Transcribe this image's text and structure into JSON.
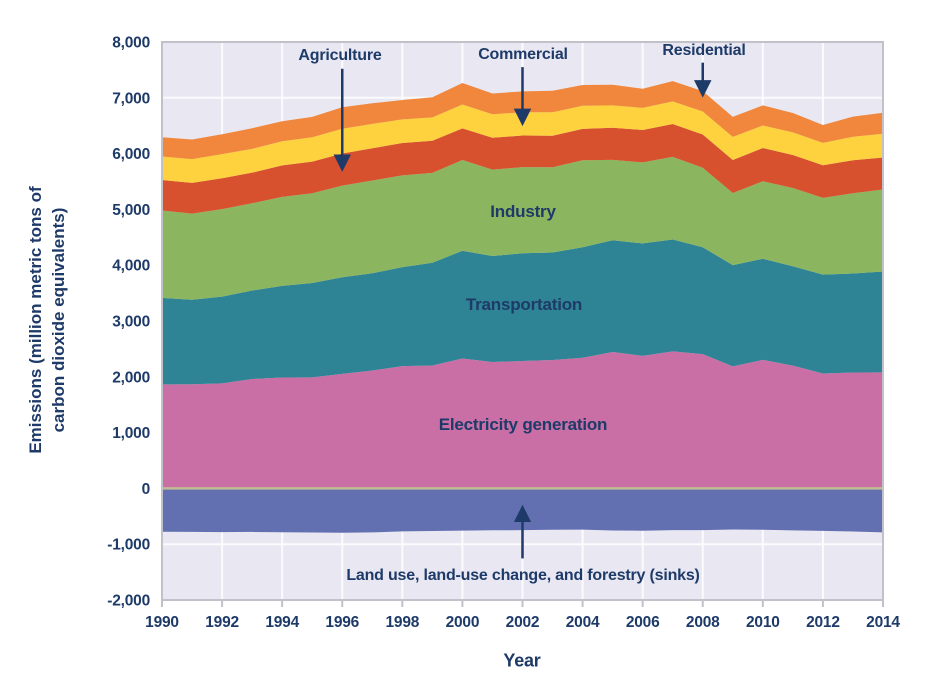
{
  "figure": {
    "x_axis_title": "Year",
    "y_axis_title_line1": "Emissions (million metric tons of",
    "y_axis_title_line2": "carbon dioxide equivalents)",
    "colors": {
      "plot_background": "#E9E8F2",
      "gridline": "#FBFBFD",
      "border": "#C2C1CA",
      "zero_line": "#C2BC92",
      "text_navy": "#1E3A68",
      "electricity_generation": "#C96FA6",
      "transportation": "#2E8494",
      "industry": "#8CB55F",
      "agriculture": "#D8512F",
      "commercial": "#FDD23E",
      "residential": "#F0873C",
      "sinks": "#6270B2"
    }
  },
  "chart_data": {
    "type": "area",
    "stacked": true,
    "title": "",
    "xlabel": "Year",
    "ylabel": "Emissions (million metric tons of carbon dioxide equivalents)",
    "xlim": [
      1990,
      2014
    ],
    "ylim": [
      -2000,
      8000
    ],
    "grid": true,
    "x": [
      1990,
      1991,
      1992,
      1993,
      1994,
      1995,
      1996,
      1997,
      1998,
      1999,
      2000,
      2001,
      2002,
      2003,
      2004,
      2005,
      2006,
      2007,
      2008,
      2009,
      2010,
      2011,
      2012,
      2013,
      2014
    ],
    "x_ticks": [
      1990,
      1992,
      1994,
      1996,
      1998,
      2000,
      2002,
      2004,
      2006,
      2008,
      2010,
      2012,
      2014
    ],
    "y_ticks": [
      {
        "value": 8000,
        "label": "8,000"
      },
      {
        "value": 7000,
        "label": "7,000"
      },
      {
        "value": 6000,
        "label": "6,000"
      },
      {
        "value": 5000,
        "label": "5,000"
      },
      {
        "value": 4000,
        "label": "4,000"
      },
      {
        "value": 3000,
        "label": "3,000"
      },
      {
        "value": 2000,
        "label": "2,000"
      },
      {
        "value": 1000,
        "label": "1,000"
      },
      {
        "value": 0,
        "label": "0"
      },
      {
        "value": -1000,
        "label": "-1,000"
      },
      {
        "value": -2000,
        "label": "-2,000"
      }
    ],
    "series": [
      {
        "name": "Electricity generation",
        "color": "#C96FA6",
        "role": "positive",
        "values": [
          1864,
          1866,
          1883,
          1960,
          1988,
          1989,
          2052,
          2114,
          2191,
          2202,
          2329,
          2266,
          2283,
          2300,
          2342,
          2444,
          2376,
          2456,
          2407,
          2186,
          2304,
          2201,
          2060,
          2077,
          2080
        ]
      },
      {
        "name": "Transportation",
        "color": "#2E8494",
        "role": "positive",
        "values": [
          1551,
          1515,
          1553,
          1587,
          1641,
          1692,
          1732,
          1742,
          1775,
          1843,
          1929,
          1898,
          1931,
          1927,
          1979,
          2003,
          2015,
          2004,
          1915,
          1816,
          1812,
          1780,
          1771,
          1775,
          1806
        ]
      },
      {
        "name": "Industry",
        "color": "#8CB55F",
        "role": "positive",
        "values": [
          1565,
          1543,
          1569,
          1563,
          1596,
          1608,
          1643,
          1663,
          1643,
          1609,
          1628,
          1549,
          1544,
          1528,
          1560,
          1441,
          1451,
          1481,
          1424,
          1291,
          1388,
          1403,
          1375,
          1438,
          1470
        ]
      },
      {
        "name": "Agriculture",
        "color": "#D8512F",
        "role": "positive",
        "values": [
          548,
          551,
          554,
          548,
          565,
          567,
          574,
          577,
          580,
          577,
          565,
          570,
          566,
          566,
          561,
          576,
          581,
          589,
          596,
          592,
          596,
          590,
          586,
          591,
          574
        ]
      },
      {
        "name": "Commercial",
        "color": "#FDD23E",
        "role": "positive",
        "values": [
          421,
          427,
          432,
          427,
          431,
          437,
          444,
          437,
          424,
          419,
          429,
          422,
          418,
          421,
          415,
          400,
          397,
          407,
          412,
          414,
          404,
          406,
          401,
          420,
          425
        ]
      },
      {
        "name": "Residential",
        "color": "#F0873C",
        "role": "positive",
        "values": [
          345,
          351,
          355,
          370,
          359,
          366,
          386,
          369,
          347,
          359,
          386,
          372,
          373,
          385,
          373,
          370,
          342,
          362,
          366,
          360,
          361,
          347,
          320,
          361,
          377
        ]
      },
      {
        "name": "Land use, land-use change, and forestry (sinks)",
        "color": "#6270B2",
        "role": "negative",
        "values": [
          -776,
          -780,
          -784,
          -780,
          -786,
          -790,
          -795,
          -789,
          -771,
          -763,
          -757,
          -750,
          -748,
          -742,
          -738,
          -754,
          -758,
          -747,
          -748,
          -736,
          -741,
          -753,
          -762,
          -772,
          -787
        ]
      }
    ],
    "area_labels": [
      {
        "text": "Industry",
        "year": 2002,
        "value": 4950
      },
      {
        "text": "Transportation",
        "year": 2002,
        "value": 3280
      },
      {
        "text": "Electricity generation",
        "year": 2002,
        "value": 1130
      }
    ],
    "annotations": [
      {
        "text": "Agriculture",
        "year": 1996,
        "value_from": 7520,
        "value_to": 5740
      },
      {
        "text": "Commercial",
        "year": 2002,
        "value_from": 7550,
        "value_to": 6560
      },
      {
        "text": "Residential",
        "year": 2008,
        "value_from": 7630,
        "value_to": 7070
      },
      {
        "text": "Land use, land-use change, and forestry (sinks)",
        "year": 2002,
        "value_from": -1255,
        "value_to": -360
      }
    ]
  }
}
